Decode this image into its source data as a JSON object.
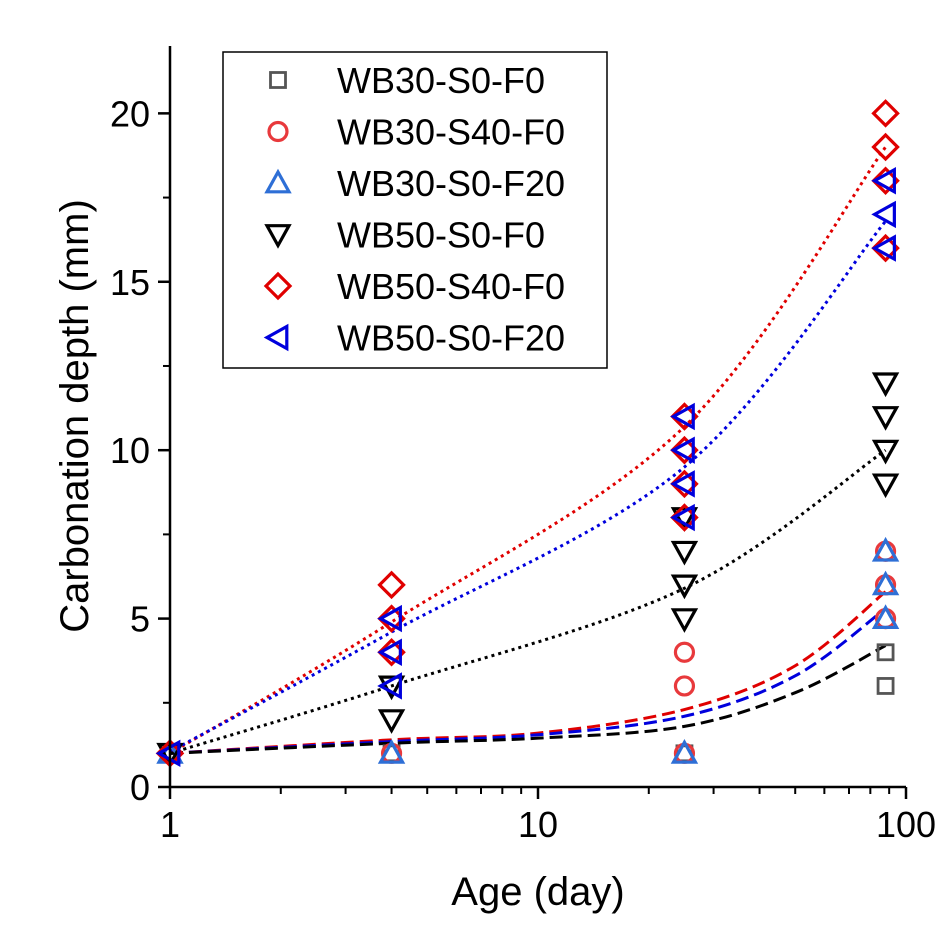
{
  "chart_data": {
    "type": "scatter",
    "title": "",
    "xlabel": "Age (day)",
    "ylabel": "Carbonation depth (mm)",
    "xscale": "log",
    "xlim": [
      1,
      100
    ],
    "ylim": [
      0,
      22
    ],
    "xticks": [
      1,
      10,
      100
    ],
    "xtick_labels": [
      "1",
      "10",
      "100"
    ],
    "yticks": [
      0,
      5,
      10,
      15,
      20
    ],
    "ytick_labels": [
      "0",
      "5",
      "10",
      "15",
      "20"
    ],
    "grid": false,
    "legend_position": "top-left",
    "series": [
      {
        "name": "WB30-S0-F0",
        "marker": "square",
        "color": "#555555",
        "points": [
          [
            1,
            1
          ],
          [
            4,
            1
          ],
          [
            25,
            1
          ],
          [
            88,
            3
          ],
          [
            88,
            4
          ]
        ]
      },
      {
        "name": "WB30-S40-F0",
        "marker": "circle",
        "color": "#e8393c",
        "points": [
          [
            1,
            1
          ],
          [
            4,
            1
          ],
          [
            25,
            1
          ],
          [
            25,
            3
          ],
          [
            25,
            4
          ],
          [
            88,
            5
          ],
          [
            88,
            6
          ],
          [
            88,
            7
          ]
        ]
      },
      {
        "name": "WB30-S0-F20",
        "marker": "triangle-up",
        "color": "#2e6fd6",
        "points": [
          [
            1,
            1
          ],
          [
            4,
            1
          ],
          [
            25,
            1
          ],
          [
            88,
            5
          ],
          [
            88,
            6
          ],
          [
            88,
            7
          ]
        ]
      },
      {
        "name": "WB50-S0-F0",
        "marker": "triangle-down",
        "color": "#000000",
        "points": [
          [
            1,
            1
          ],
          [
            4,
            2
          ],
          [
            4,
            3
          ],
          [
            25,
            5
          ],
          [
            25,
            6
          ],
          [
            25,
            7
          ],
          [
            25,
            8
          ],
          [
            88,
            9
          ],
          [
            88,
            10
          ],
          [
            88,
            11
          ],
          [
            88,
            12
          ]
        ]
      },
      {
        "name": "WB50-S40-F0",
        "marker": "diamond",
        "color": "#e00000",
        "points": [
          [
            1,
            1
          ],
          [
            4,
            4
          ],
          [
            4,
            5
          ],
          [
            4,
            6
          ],
          [
            25,
            8
          ],
          [
            25,
            9
          ],
          [
            25,
            10
          ],
          [
            25,
            11
          ],
          [
            88,
            16
          ],
          [
            88,
            18
          ],
          [
            88,
            19
          ],
          [
            88,
            20
          ]
        ]
      },
      {
        "name": "WB50-S0-F20",
        "marker": "triangle-left",
        "color": "#0000dd",
        "points": [
          [
            1,
            1
          ],
          [
            4,
            3
          ],
          [
            4,
            4
          ],
          [
            4,
            5
          ],
          [
            25,
            8
          ],
          [
            25,
            9
          ],
          [
            25,
            10
          ],
          [
            25,
            11
          ],
          [
            88,
            16
          ],
          [
            88,
            17
          ],
          [
            88,
            18
          ]
        ]
      }
    ],
    "fit_lines": [
      {
        "style": "dotted",
        "color": "#e00000",
        "points": [
          [
            1,
            1
          ],
          [
            4,
            4.9
          ],
          [
            25,
            10.7
          ],
          [
            88,
            19
          ]
        ]
      },
      {
        "style": "dotted",
        "color": "#0000dd",
        "points": [
          [
            1,
            1.05
          ],
          [
            4,
            4.6
          ],
          [
            25,
            9.5
          ],
          [
            88,
            16.8
          ]
        ]
      },
      {
        "style": "dotted",
        "color": "#000000",
        "points": [
          [
            1,
            1
          ],
          [
            4,
            3
          ],
          [
            25,
            5.9
          ],
          [
            88,
            10
          ]
        ]
      },
      {
        "style": "dashed",
        "color": "#e00000",
        "points": [
          [
            1,
            1
          ],
          [
            4,
            1.4
          ],
          [
            10,
            1.6
          ],
          [
            25,
            2.3
          ],
          [
            50,
            3.6
          ],
          [
            88,
            5.8
          ]
        ]
      },
      {
        "style": "dashed",
        "color": "#0000dd",
        "points": [
          [
            1,
            1
          ],
          [
            4,
            1.35
          ],
          [
            10,
            1.55
          ],
          [
            25,
            2.1
          ],
          [
            50,
            3.3
          ],
          [
            88,
            5.3
          ]
        ]
      },
      {
        "style": "dashed",
        "color": "#000000",
        "points": [
          [
            1,
            1
          ],
          [
            4,
            1.3
          ],
          [
            10,
            1.45
          ],
          [
            25,
            1.8
          ],
          [
            50,
            2.8
          ],
          [
            88,
            4.2
          ]
        ]
      }
    ]
  }
}
